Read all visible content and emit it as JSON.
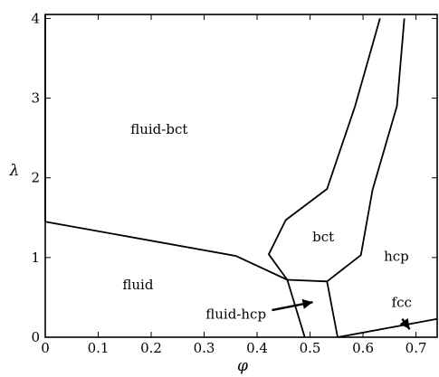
{
  "chart_data": {
    "type": "line",
    "xlabel": "φ",
    "ylabel": "λ",
    "xlim": [
      0,
      0.74
    ],
    "ylim": [
      0,
      4.05
    ],
    "x_ticks": [
      0,
      0.1,
      0.2,
      0.3,
      0.4,
      0.5,
      0.6,
      0.7
    ],
    "x_tick_labels": [
      "0",
      "0.1",
      "0.2",
      "0.3",
      "0.4",
      "0.5",
      "0.6",
      "0.7"
    ],
    "y_ticks": [
      0,
      1,
      2,
      3,
      4
    ],
    "y_tick_labels": [
      "0",
      "1",
      "2",
      "3",
      "4"
    ],
    "grid": false,
    "series": [
      {
        "x": [
          0.0,
          0.0
        ],
        "y": [
          1.45,
          4.05
        ]
      },
      {
        "x": [
          0.0,
          0.36,
          0.457
        ],
        "y": [
          1.45,
          1.02,
          0.72
        ]
      },
      {
        "x": [
          0.457,
          0.49
        ],
        "y": [
          0.72,
          0.0
        ]
      },
      {
        "x": [
          0.457,
          0.532
        ],
        "y": [
          0.72,
          0.7
        ]
      },
      {
        "x": [
          0.457,
          0.422,
          0.454,
          0.532,
          0.585,
          0.632
        ],
        "y": [
          0.72,
          1.04,
          1.47,
          1.86,
          2.9,
          4.0
        ]
      },
      {
        "x": [
          0.532,
          0.596,
          0.618,
          0.664,
          0.678
        ],
        "y": [
          0.7,
          1.03,
          1.85,
          2.9,
          4.0
        ]
      },
      {
        "x": [
          0.532,
          0.552
        ],
        "y": [
          0.7,
          0.0
        ]
      },
      {
        "x": [
          0.552,
          0.74
        ],
        "y": [
          0.0,
          0.23
        ]
      }
    ],
    "annotations": [
      {
        "text": "fluid-bct",
        "x": 0.215,
        "y": 2.55
      },
      {
        "text": "fluid",
        "x": 0.175,
        "y": 0.6
      },
      {
        "text": "bct",
        "x": 0.525,
        "y": 1.2
      },
      {
        "text": "hcp",
        "x": 0.663,
        "y": 0.96
      },
      {
        "text": "fluid-hcp",
        "x": 0.36,
        "y": 0.23
      },
      {
        "text": "fcc",
        "x": 0.673,
        "y": 0.38
      }
    ],
    "arrows": [
      {
        "x1": 0.428,
        "y1": 0.34,
        "x2": 0.505,
        "y2": 0.44
      },
      {
        "x1": 0.674,
        "y1": 0.23,
        "x2": 0.688,
        "y2": 0.1
      }
    ]
  }
}
